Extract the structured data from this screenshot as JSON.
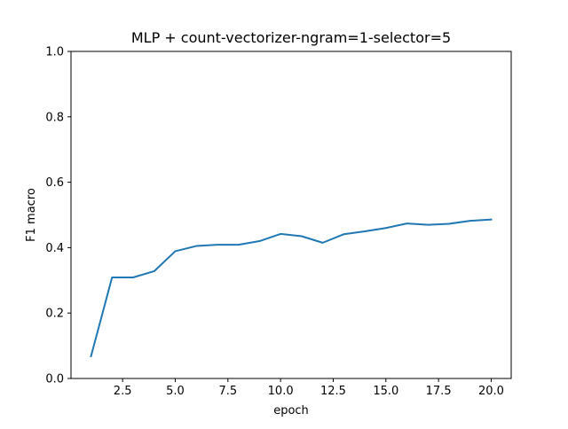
{
  "chart_data": {
    "type": "line",
    "title": "MLP + count-vectorizer-ngram=1-selector=5",
    "xlabel": "epoch",
    "ylabel": "F1 macro",
    "xlim": [
      0.05,
      20.95
    ],
    "ylim": [
      0.0,
      1.0
    ],
    "x_ticks": [
      2.5,
      5.0,
      7.5,
      10.0,
      12.5,
      15.0,
      17.5,
      20.0
    ],
    "x_tick_labels": [
      "2.5",
      "5.0",
      "7.5",
      "10.0",
      "12.5",
      "15.0",
      "17.5",
      "20.0"
    ],
    "y_ticks": [
      0.0,
      0.2,
      0.4,
      0.6,
      0.8,
      1.0
    ],
    "y_tick_labels": [
      "0.0",
      "0.2",
      "0.4",
      "0.6",
      "0.8",
      "1.0"
    ],
    "grid": false,
    "series": [
      {
        "color": "#1f77b4",
        "x": [
          1,
          2,
          3,
          4,
          5,
          6,
          7,
          8,
          9,
          10,
          11,
          12,
          13,
          14,
          15,
          16,
          17,
          18,
          19,
          20
        ],
        "y": [
          0.068,
          0.309,
          0.309,
          0.328,
          0.389,
          0.405,
          0.409,
          0.409,
          0.42,
          0.442,
          0.435,
          0.415,
          0.441,
          0.45,
          0.46,
          0.474,
          0.47,
          0.473,
          0.482,
          0.486
        ]
      }
    ]
  }
}
